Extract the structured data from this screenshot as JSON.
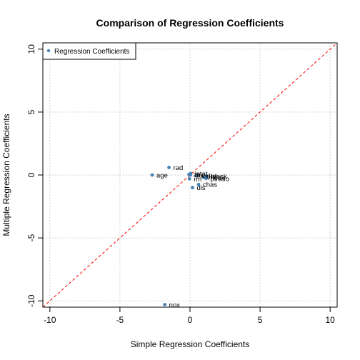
{
  "chart_data": {
    "type": "scatter",
    "title": "Comparison of Regression Coefficients",
    "xlabel": "Simple Regression Coefficients",
    "ylabel": "Multiple Regression Coefficients",
    "xlim": [
      -10.5,
      10.5
    ],
    "ylim": [
      -10.5,
      10.5
    ],
    "xticks": [
      -10,
      -5,
      0,
      5,
      10
    ],
    "yticks": [
      -10,
      -5,
      0,
      5,
      10
    ],
    "grid": true,
    "legend": {
      "position": "top-left",
      "entries": [
        "Regression Coefficients"
      ]
    },
    "reference_line": {
      "type": "y=x",
      "color": "#ff0000",
      "style": "dashed"
    },
    "point_color": "#4682b4",
    "line_color": "#ff0000",
    "points": [
      {
        "label": "zn",
        "x": -0.07,
        "y": 0.05
      },
      {
        "label": "indus",
        "x": 0.51,
        "y": -0.06
      },
      {
        "label": "chas",
        "x": 0.61,
        "y": -0.75
      },
      {
        "label": "nox",
        "x": -1.8,
        "y": -10.3
      },
      {
        "label": "rm",
        "x": -0.04,
        "y": -0.3
      },
      {
        "label": "age",
        "x": -2.7,
        "y": 0.0
      },
      {
        "label": "dis",
        "x": 0.18,
        "y": -1.0
      },
      {
        "label": "rad",
        "x": -1.5,
        "y": 0.6
      },
      {
        "label": "tax",
        "x": 0.03,
        "y": -0.003
      },
      {
        "label": "ptratio",
        "x": 1.15,
        "y": -0.27
      },
      {
        "label": "black",
        "x": 1.2,
        "y": -0.08
      },
      {
        "label": "lstat",
        "x": 0.05,
        "y": 0.12
      },
      {
        "label": "medv",
        "x": 1.0,
        "y": -0.2
      }
    ]
  }
}
